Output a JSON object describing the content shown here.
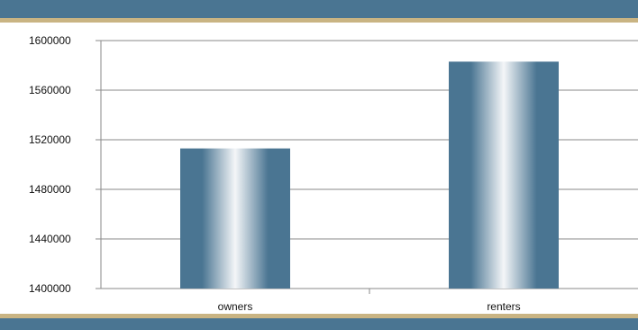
{
  "colors": {
    "band": "#4a7592",
    "stripe": "#c9b483",
    "bar_edge": "#4a7592",
    "bar_highlight": "#f4f6f8",
    "grid": "#8a8a8a"
  },
  "chart_data": {
    "type": "bar",
    "categories": [
      "owners",
      "renters"
    ],
    "values": [
      1513000,
      1583000
    ],
    "title": "",
    "xlabel": "",
    "ylabel": "",
    "ylim": [
      1400000,
      1600000
    ],
    "yticks": [
      "1400000",
      "1440000",
      "1480000",
      "1520000",
      "1560000",
      "1600000"
    ],
    "grid": true,
    "legend": "none"
  }
}
